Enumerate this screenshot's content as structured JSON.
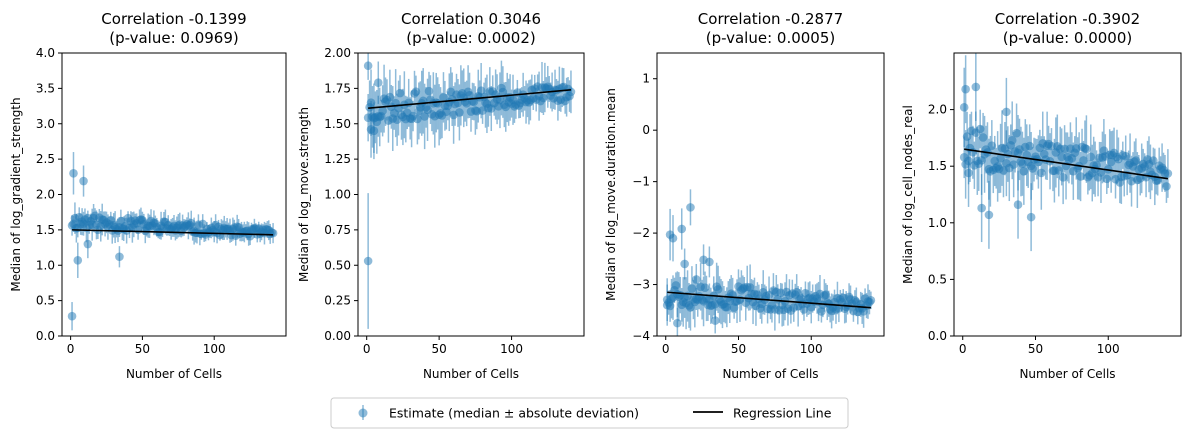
{
  "chart_data": [
    {
      "type": "scatter",
      "title_line1": "Correlation -0.1399",
      "title_line2": "(p-value: 0.0969)",
      "xlabel": "Number of Cells",
      "ylabel": "Median of log_gradient_strength",
      "xlim": [
        -6,
        150
      ],
      "ylim": [
        0,
        4
      ],
      "xticks": [
        0,
        50,
        100
      ],
      "yticks": [
        0.0,
        0.5,
        1.0,
        1.5,
        2.0,
        2.5,
        3.0,
        3.5,
        4.0
      ],
      "ytick_labels": [
        "0.0",
        "0.5",
        "1.0",
        "1.5",
        "2.0",
        "2.5",
        "3.0",
        "3.5",
        "4.0"
      ],
      "x_range": [
        1,
        141
      ],
      "trend": {
        "start": 1.62,
        "end": 1.45
      },
      "spread": 0.07,
      "yerr": 0.14,
      "seed": 11,
      "regression": {
        "x": [
          1,
          141
        ],
        "y": [
          1.5,
          1.43
        ]
      },
      "highlights": [
        {
          "x": 1,
          "y": 0.28,
          "err": 0.2
        },
        {
          "x": 2,
          "y": 2.3,
          "err": 0.3
        },
        {
          "x": 5,
          "y": 1.07,
          "err": 0.25
        },
        {
          "x": 9,
          "y": 2.19,
          "err": 0.22
        },
        {
          "x": 12,
          "y": 1.3,
          "err": 0.2
        },
        {
          "x": 34,
          "y": 1.12,
          "err": 0.15
        }
      ]
    },
    {
      "type": "scatter",
      "title_line1": "Correlation 0.3046",
      "title_line2": "(p-value: 0.0002)",
      "xlabel": "Number of Cells",
      "ylabel": "Median of log_move.strength",
      "xlim": [
        -6,
        150
      ],
      "ylim": [
        0,
        2
      ],
      "xticks": [
        0,
        50,
        100
      ],
      "yticks": [
        0,
        0.25,
        0.5,
        0.75,
        1.0,
        1.25,
        1.5,
        1.75,
        2.0
      ],
      "ytick_labels": [
        "0.00",
        "0.25",
        "0.50",
        "0.75",
        "1.00",
        "1.25",
        "1.50",
        "1.75",
        "2.00"
      ],
      "x_range": [
        1,
        141
      ],
      "trend": {
        "start": 1.6,
        "end": 1.72
      },
      "spread": 0.07,
      "yerr": 0.15,
      "seed": 23,
      "regression": {
        "x": [
          1,
          141
        ],
        "y": [
          1.61,
          1.74
        ]
      },
      "highlights": [
        {
          "x": 1,
          "y": 0.53,
          "err": 0.48
        },
        {
          "x": 1,
          "y": 1.91,
          "err": 0.1
        },
        {
          "x": 3,
          "y": 1.46,
          "err": 0.2
        },
        {
          "x": 5,
          "y": 1.45,
          "err": 0.2
        },
        {
          "x": 8,
          "y": 1.79,
          "err": 0.15
        }
      ]
    },
    {
      "type": "scatter",
      "title_line1": "Correlation -0.2877",
      "title_line2": "(p-value: 0.0005)",
      "xlabel": "Number of Cells",
      "ylabel": "Median of log_move.duration.mean",
      "xlim": [
        -6,
        150
      ],
      "ylim": [
        -4,
        1.5
      ],
      "xticks": [
        0,
        50,
        100
      ],
      "yticks": [
        -4,
        -3,
        -2,
        -1,
        0,
        1
      ],
      "ytick_labels": [
        "−4",
        "−3",
        "−2",
        "−1",
        "0",
        "1"
      ],
      "x_range": [
        1,
        141
      ],
      "trend": {
        "start": -3.15,
        "end": -3.42
      },
      "spread": 0.18,
      "yerr": 0.3,
      "seed": 37,
      "regression": {
        "x": [
          1,
          141
        ],
        "y": [
          -3.15,
          -3.45
        ]
      },
      "highlights": [
        {
          "x": 1,
          "y": -3.4,
          "err": 0.4
        },
        {
          "x": 3,
          "y": -2.03,
          "err": 0.5
        },
        {
          "x": 5,
          "y": -2.1,
          "err": 0.45
        },
        {
          "x": 8,
          "y": -3.75,
          "err": 0.3
        },
        {
          "x": 11,
          "y": -1.92,
          "err": 0.4
        },
        {
          "x": 13,
          "y": -2.6,
          "err": 0.3
        },
        {
          "x": 17,
          "y": -1.5,
          "err": 0.35
        },
        {
          "x": 21,
          "y": -2.9,
          "err": 0.3
        },
        {
          "x": 26,
          "y": -2.52,
          "err": 0.3
        },
        {
          "x": 30,
          "y": -2.56,
          "err": 0.3
        },
        {
          "x": 34,
          "y": -3.7,
          "err": 0.25
        }
      ]
    },
    {
      "type": "scatter",
      "title_line1": "Correlation -0.3902",
      "title_line2": "(p-value: 0.0000)",
      "xlabel": "Number of Cells",
      "ylabel": "Median of log_cell_nodes_real",
      "xlim": [
        -6,
        150
      ],
      "ylim": [
        0,
        2.5
      ],
      "xticks": [
        0,
        50,
        100
      ],
      "yticks": [
        0.0,
        0.5,
        1.0,
        1.5,
        2.0
      ],
      "ytick_labels": [
        "0.0",
        "0.5",
        "1.0",
        "1.5",
        "2.0"
      ],
      "x_range": [
        1,
        141
      ],
      "trend": {
        "start": 1.68,
        "end": 1.42
      },
      "spread": 0.13,
      "yerr": 0.22,
      "seed": 53,
      "regression": {
        "x": [
          1,
          141
        ],
        "y": [
          1.65,
          1.39
        ]
      },
      "highlights": [
        {
          "x": 1,
          "y": 2.02,
          "err": 0.35
        },
        {
          "x": 2,
          "y": 2.18,
          "err": 0.3
        },
        {
          "x": 4,
          "y": 1.44,
          "err": 0.3
        },
        {
          "x": 9,
          "y": 2.2,
          "err": 0.3
        },
        {
          "x": 13,
          "y": 1.13,
          "err": 0.3
        },
        {
          "x": 18,
          "y": 1.07,
          "err": 0.3
        },
        {
          "x": 30,
          "y": 1.98,
          "err": 0.3
        },
        {
          "x": 38,
          "y": 1.16,
          "err": 0.3
        },
        {
          "x": 47,
          "y": 1.05,
          "err": 0.3
        }
      ]
    }
  ],
  "legend": {
    "errorbar_label": "Estimate (median ± absolute deviation)",
    "line_label": "Regression Line"
  },
  "colors": {
    "points": "#1f77b4",
    "regression": "#000000"
  }
}
